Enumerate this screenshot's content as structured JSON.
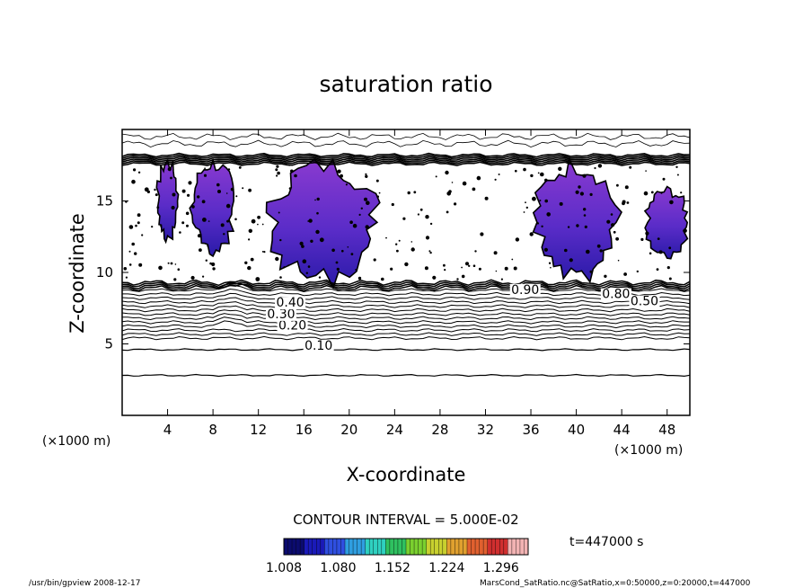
{
  "chart_data": {
    "type": "heatmap",
    "title": "saturation ratio",
    "xlabel": "X-coordinate",
    "ylabel": "Z-coordinate",
    "x_unit_left": "(×1000 m)",
    "x_unit_right": "(×1000 m)",
    "xlim": [
      0,
      50
    ],
    "ylim": [
      0,
      20
    ],
    "x_ticks": [
      "4",
      "8",
      "12",
      "16",
      "20",
      "24",
      "28",
      "32",
      "36",
      "40",
      "44",
      "48"
    ],
    "y_ticks": [
      "5",
      "10",
      "15"
    ],
    "contour_interval_text": "CONTOUR INTERVAL = 5.000E-02",
    "contour_labels": [
      {
        "text": "0.10",
        "x": 17.3,
        "z": 4.6
      },
      {
        "text": "0.20",
        "x": 15.0,
        "z": 6.0
      },
      {
        "text": "0.30",
        "x": 14.0,
        "z": 6.8
      },
      {
        "text": "0.40",
        "x": 14.8,
        "z": 7.6
      },
      {
        "text": "0.90",
        "x": 35.5,
        "z": 8.5
      },
      {
        "text": "0.80",
        "x": 43.5,
        "z": 8.2
      },
      {
        "text": "0.50",
        "x": 46.0,
        "z": 7.7
      }
    ],
    "colorbar": {
      "min": 1.008,
      "max": 1.332,
      "tick_labels": [
        "1.008",
        "1.080",
        "1.152",
        "1.224",
        "1.296"
      ],
      "colors": [
        "#0b0b6e",
        "#1a1ab8",
        "#2f4fe0",
        "#2f9ee0",
        "#2fd0c0",
        "#2fc060",
        "#7ad02f",
        "#c8d02f",
        "#e0a02f",
        "#e0602f",
        "#d02f2f",
        "#f2b3b3"
      ]
    },
    "supersaturated_regions": [
      {
        "x": [
          3,
          5
        ],
        "z": [
          12,
          18
        ]
      },
      {
        "x": [
          6,
          10
        ],
        "z": [
          11,
          18
        ]
      },
      {
        "x": [
          12.5,
          23
        ],
        "z": [
          9,
          18
        ]
      },
      {
        "x": [
          36,
          44
        ],
        "z": [
          9,
          18
        ]
      },
      {
        "x": [
          46,
          50
        ],
        "z": [
          11,
          16
        ]
      }
    ],
    "time_label": "t=447000 s",
    "footer_left": "/usr/bin/gpview  2008-12-17",
    "footer_right": "MarsCond_SatRatio.nc@SatRatio,x=0:50000,z=0:20000,t=447000"
  }
}
